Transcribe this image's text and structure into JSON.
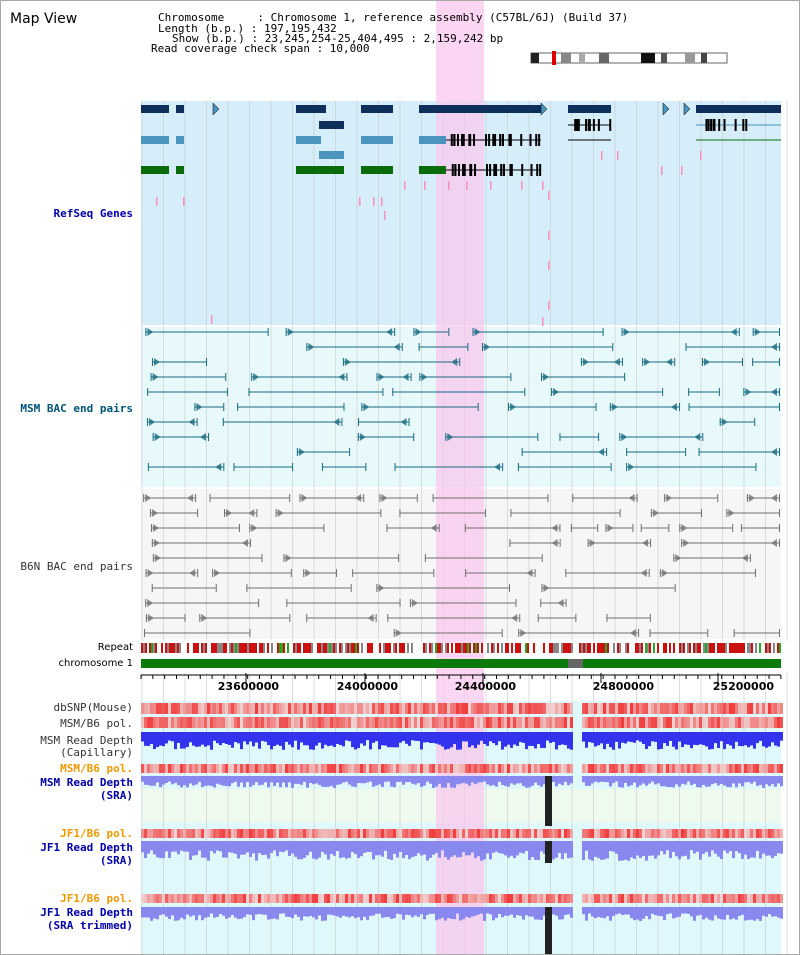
{
  "header": {
    "title": "Map View",
    "info_lines": [
      "Chromosome     : Chromosome 1, reference assembly (C57BL/6J) (Build 37)",
      "Length (b.p.) : 197,195,432",
      "Show (b.p.) : 23,245,254-25,404,495 : 2,159,242 bp",
      "Read coverage check span : 10,000"
    ]
  },
  "tracks": {
    "refseq": "RefSeq Genes",
    "msm_bac": "MSM BAC end pairs",
    "b6n_bac": "B6N BAC end pairs",
    "repeat": "Repeat",
    "chromosome": "chromosome 1",
    "dbsnp": "dbSNP(Mouse)",
    "msm_pol": "MSM/B6 pol.",
    "msm_depth_cap_1": "MSM Read Depth",
    "msm_depth_cap_2": "(Capillary)",
    "msm_pol_2": "MSM/B6 pol.",
    "msm_depth_sra_1": "MSM Read Depth",
    "msm_depth_sra_2": "(SRA)",
    "jf1_pol": "JF1/B6 pol.",
    "jf1_depth_sra_1": "JF1 Read Depth",
    "jf1_depth_sra_2": "(SRA)",
    "jf1_pol_2": "JF1/B6 pol.",
    "jf1_depth_trim_1": "JF1 Read Depth",
    "jf1_depth_trim_2": "(SRA trimmed)"
  },
  "axis": {
    "ticks": [
      "23600000",
      "24000000",
      "24400000",
      "24800000",
      "25200000"
    ]
  },
  "colors": {
    "refseq_bg": "#d5eefa",
    "gene_dark": "#0e2f5c",
    "gene_mid": "#4a94bd",
    "gene_green": "#0a6b0a",
    "marker_pink": "#ff8fb8",
    "msm_bac": "#1a6a80",
    "b6n_bac": "#707070",
    "highlight": "#f8c8ee",
    "chrom_bar": "#0a7a0a",
    "pol_red": "#ee3333",
    "depth_blue": "#3333ee",
    "depth_light": "#8888ee"
  }
}
